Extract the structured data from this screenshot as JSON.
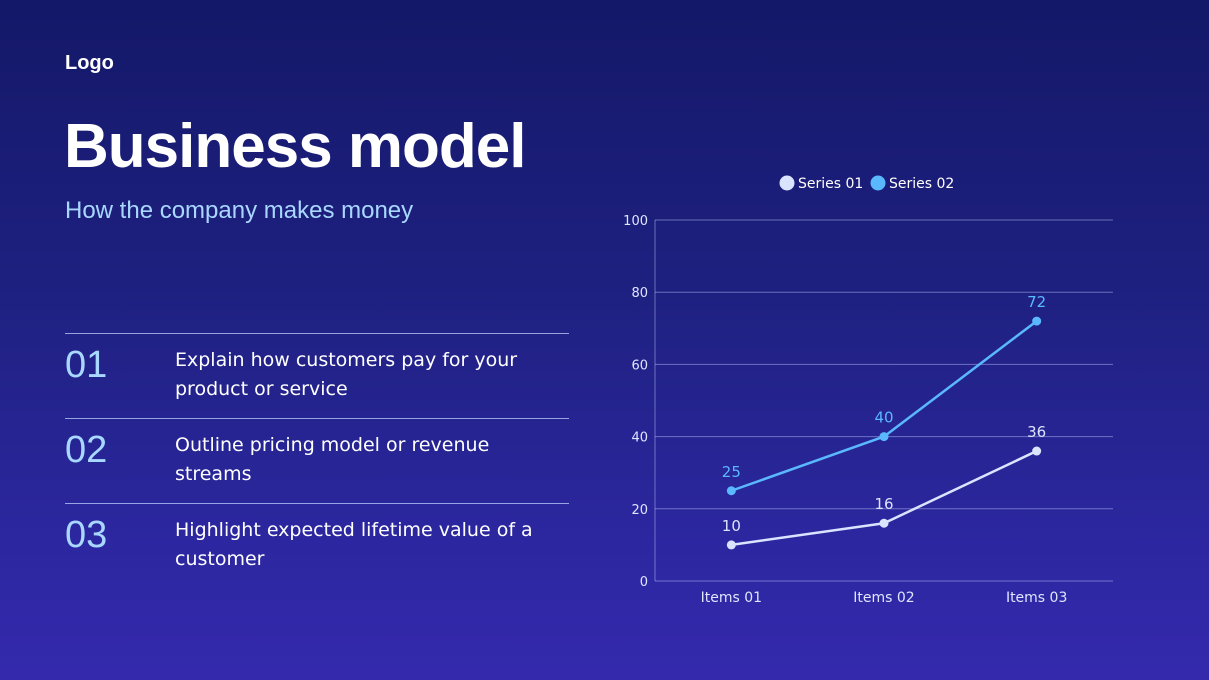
{
  "logo": "Logo",
  "title": "Business model",
  "subtitle": "How the company makes money",
  "items": [
    {
      "number": "01",
      "text": "Explain how customers pay for your product or service"
    },
    {
      "number": "02",
      "text": "Outline pricing model or revenue streams"
    },
    {
      "number": "03",
      "text": "Highlight expected lifetime value of a customer"
    }
  ],
  "colors": {
    "accent": "#a8d8ff",
    "series_01": "#dbe4ff",
    "series_02": "#5ab8ff"
  },
  "chart_data": {
    "type": "line",
    "categories": [
      "Items 01",
      "Items 02",
      "Items 03"
    ],
    "series": [
      {
        "name": "Series 01",
        "values": [
          10,
          16,
          36
        ]
      },
      {
        "name": "Series 02",
        "values": [
          25,
          40,
          72
        ]
      }
    ],
    "ylim": [
      0,
      100
    ],
    "yticks": [
      0,
      20,
      40,
      60,
      80,
      100
    ],
    "grid": true,
    "legend": "top-center",
    "data_labels": true
  }
}
